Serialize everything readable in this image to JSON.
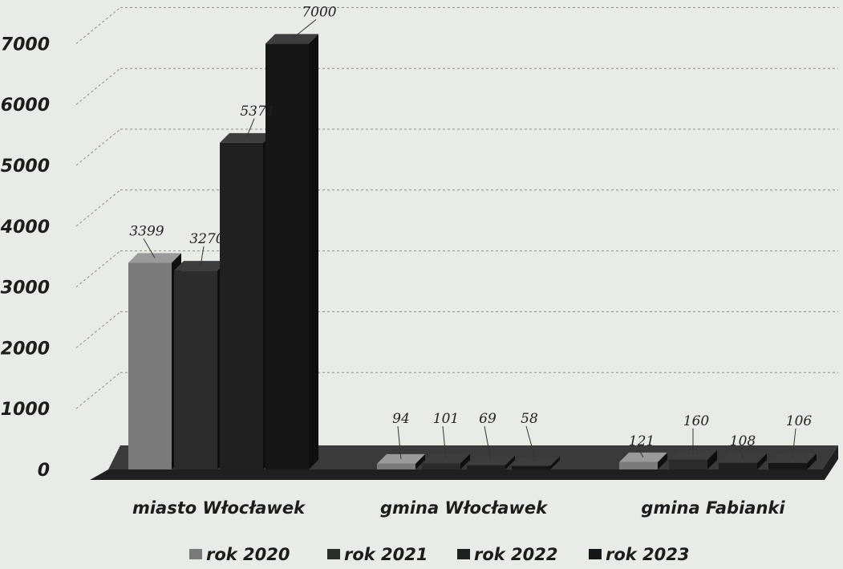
{
  "chart_data": {
    "type": "bar",
    "categories": [
      "miasto Włocławek",
      "gmina Włocławek",
      "gmina Fabianki"
    ],
    "series": [
      {
        "name": "rok 2020",
        "values": [
          3399,
          94,
          121
        ],
        "color": "#7a7a7a"
      },
      {
        "name": "rok 2021",
        "values": [
          3270,
          101,
          160
        ],
        "color": "#2b2b2b"
      },
      {
        "name": "rok 2022",
        "values": [
          5371,
          69,
          108
        ],
        "color": "#202020"
      },
      {
        "name": "rok 2023",
        "values": [
          7000,
          58,
          106
        ],
        "color": "#161616"
      }
    ],
    "yticks": [
      "0",
      "1000",
      "2000",
      "3000",
      "4000",
      "5000",
      "6000",
      "7000"
    ],
    "ylim": [
      0,
      7000
    ],
    "grid": true,
    "legend_position": "bottom"
  }
}
